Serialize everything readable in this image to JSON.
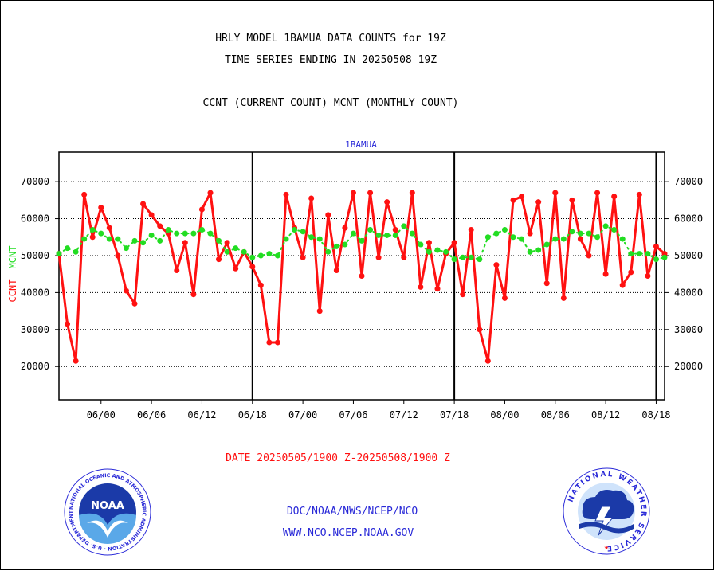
{
  "page": {
    "title_line1": "HRLY MODEL 1BAMUA DATA COUNTS for 19Z",
    "title_line2": "TIME SERIES ENDING IN 20250508 19Z",
    "subtitle": "CCNT (CURRENT COUNT) MCNT (MONTHLY COUNT)",
    "plot_label": "1BAMUA",
    "date_range": "DATE 20250505/1900 Z-20250508/1900 Z",
    "footer_line1": "DOC/NOAA/NWS/NCEP/NCO",
    "footer_line2": "WWW.NCO.NCEP.NOAA.GOV",
    "noaa_logo_text": "NOAA",
    "noaa_logo_ring": "NATIONAL OCEANIC AND ATMOSPHERIC ADMINISTRATION · U.S. DEPARTMENT OF COMMERCE",
    "nws_logo_ring": "NATIONAL WEATHER SERVICE"
  },
  "colors": {
    "ccnt": "#ff1111",
    "mcnt": "#22dd22",
    "title": "#000000",
    "date": "#ff1111",
    "footer": "#2a2ad8",
    "plot_label": "#2a2ad8"
  },
  "chart_data": {
    "type": "line",
    "title": "HRLY MODEL 1BAMUA DATA COUNTS for 19Z",
    "ylabel_left": [
      "CCNT",
      "MCNT"
    ],
    "ylim": [
      11000,
      78000
    ],
    "yticks": [
      20000,
      30000,
      40000,
      50000,
      60000,
      70000
    ],
    "ytick_labels": [
      "20000",
      "30000",
      "40000",
      "50000",
      "60000",
      "70000"
    ],
    "xlim": [
      0,
      72
    ],
    "xticks": [
      5,
      11,
      17,
      23,
      29,
      35,
      41,
      47,
      53,
      59,
      65,
      71
    ],
    "xtick_labels": [
      "06/00",
      "06/06",
      "06/12",
      "06/18",
      "07/00",
      "07/06",
      "07/12",
      "07/18",
      "08/00",
      "08/06",
      "08/12",
      "08/18"
    ],
    "vlines": [
      23,
      47,
      71
    ],
    "grid": true,
    "series": [
      {
        "name": "CCNT",
        "values": [
          50500,
          31500,
          21500,
          66500,
          55000,
          63000,
          57500,
          50000,
          40500,
          37000,
          64000,
          61000,
          58000,
          56000,
          46000,
          53500,
          39500,
          62500,
          67000,
          49000,
          53500,
          46500,
          51000,
          47000,
          42000,
          26500,
          26500,
          66500,
          57500,
          49500,
          65500,
          35000,
          61000,
          46000,
          57500,
          67000,
          44500,
          67000,
          49500,
          64500,
          57000,
          49500,
          67000,
          41500,
          53500,
          41000,
          50500,
          53500,
          39500,
          57000,
          30000,
          21500,
          47500,
          38500,
          65000,
          66000,
          56000,
          64500,
          42500,
          67000,
          38500,
          65000,
          54500,
          50000,
          67000,
          45000,
          66000,
          42000,
          45500,
          66500,
          44500,
          52500,
          50500
        ]
      },
      {
        "name": "MCNT",
        "values": [
          50500,
          52000,
          51000,
          54500,
          57000,
          56000,
          54500,
          54500,
          52000,
          54000,
          53500,
          55500,
          54000,
          57000,
          56000,
          56000,
          56000,
          57000,
          56000,
          54000,
          51000,
          52000,
          51000,
          49500,
          50000,
          50500,
          50000,
          54500,
          57000,
          56500,
          55000,
          54500,
          51000,
          52500,
          53000,
          56000,
          54000,
          57000,
          55500,
          55500,
          55500,
          58000,
          56000,
          53000,
          51000,
          51500,
          51000,
          49000,
          49500,
          49500,
          49000,
          55000,
          56000,
          57000,
          55000,
          54500,
          51000,
          51500,
          53000,
          54500,
          54500,
          56500,
          56000,
          56000,
          55000,
          58000,
          57000,
          54500,
          50500,
          50500,
          50500,
          49000,
          49500
        ]
      }
    ]
  }
}
